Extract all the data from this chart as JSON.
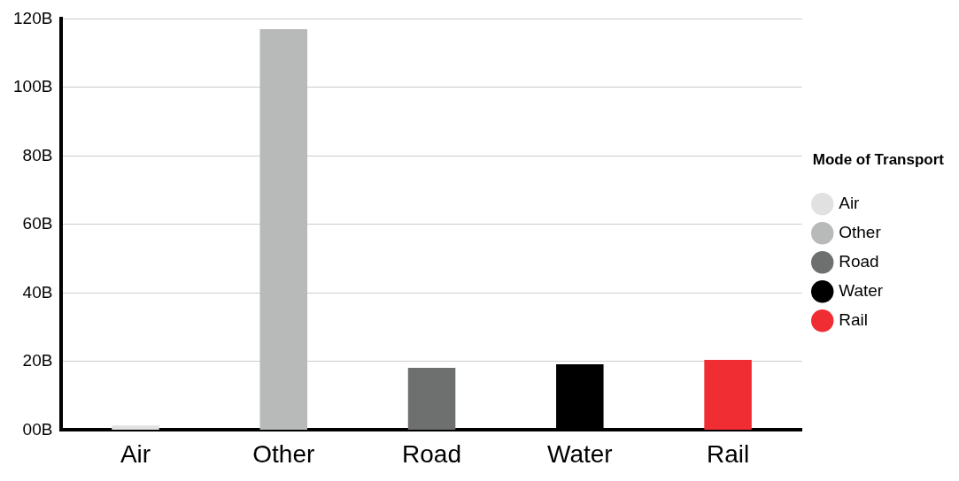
{
  "chart_data": {
    "type": "bar",
    "legend_title": "Mode of Transport",
    "categories": [
      "Air",
      "Other",
      "Road",
      "Water",
      "Rail"
    ],
    "series": [
      {
        "name": "Air",
        "color": "#e1e1e1",
        "values": [
          1.3,
          null,
          null,
          null,
          null
        ]
      },
      {
        "name": "Other",
        "color": "#b7bab9",
        "values": [
          null,
          117,
          null,
          null,
          null
        ]
      },
      {
        "name": "Road",
        "color": "#6d706f",
        "values": [
          null,
          null,
          18.2,
          null,
          null
        ]
      },
      {
        "name": "Water",
        "color": "#000000",
        "values": [
          null,
          null,
          null,
          19.2,
          null
        ]
      },
      {
        "name": "Rail",
        "color": "#ef2d32",
        "values": [
          null,
          null,
          null,
          null,
          20.5
        ]
      }
    ],
    "ylim": [
      0,
      120
    ],
    "yticks": [
      {
        "value": 0,
        "label": "00B"
      },
      {
        "value": 20,
        "label": "20B"
      },
      {
        "value": 40,
        "label": "40B"
      },
      {
        "value": 60,
        "label": "60B"
      },
      {
        "value": 80,
        "label": "80B"
      },
      {
        "value": 100,
        "label": "100B"
      },
      {
        "value": 120,
        "label": "120B"
      }
    ],
    "grid": "y",
    "legend": "right"
  }
}
